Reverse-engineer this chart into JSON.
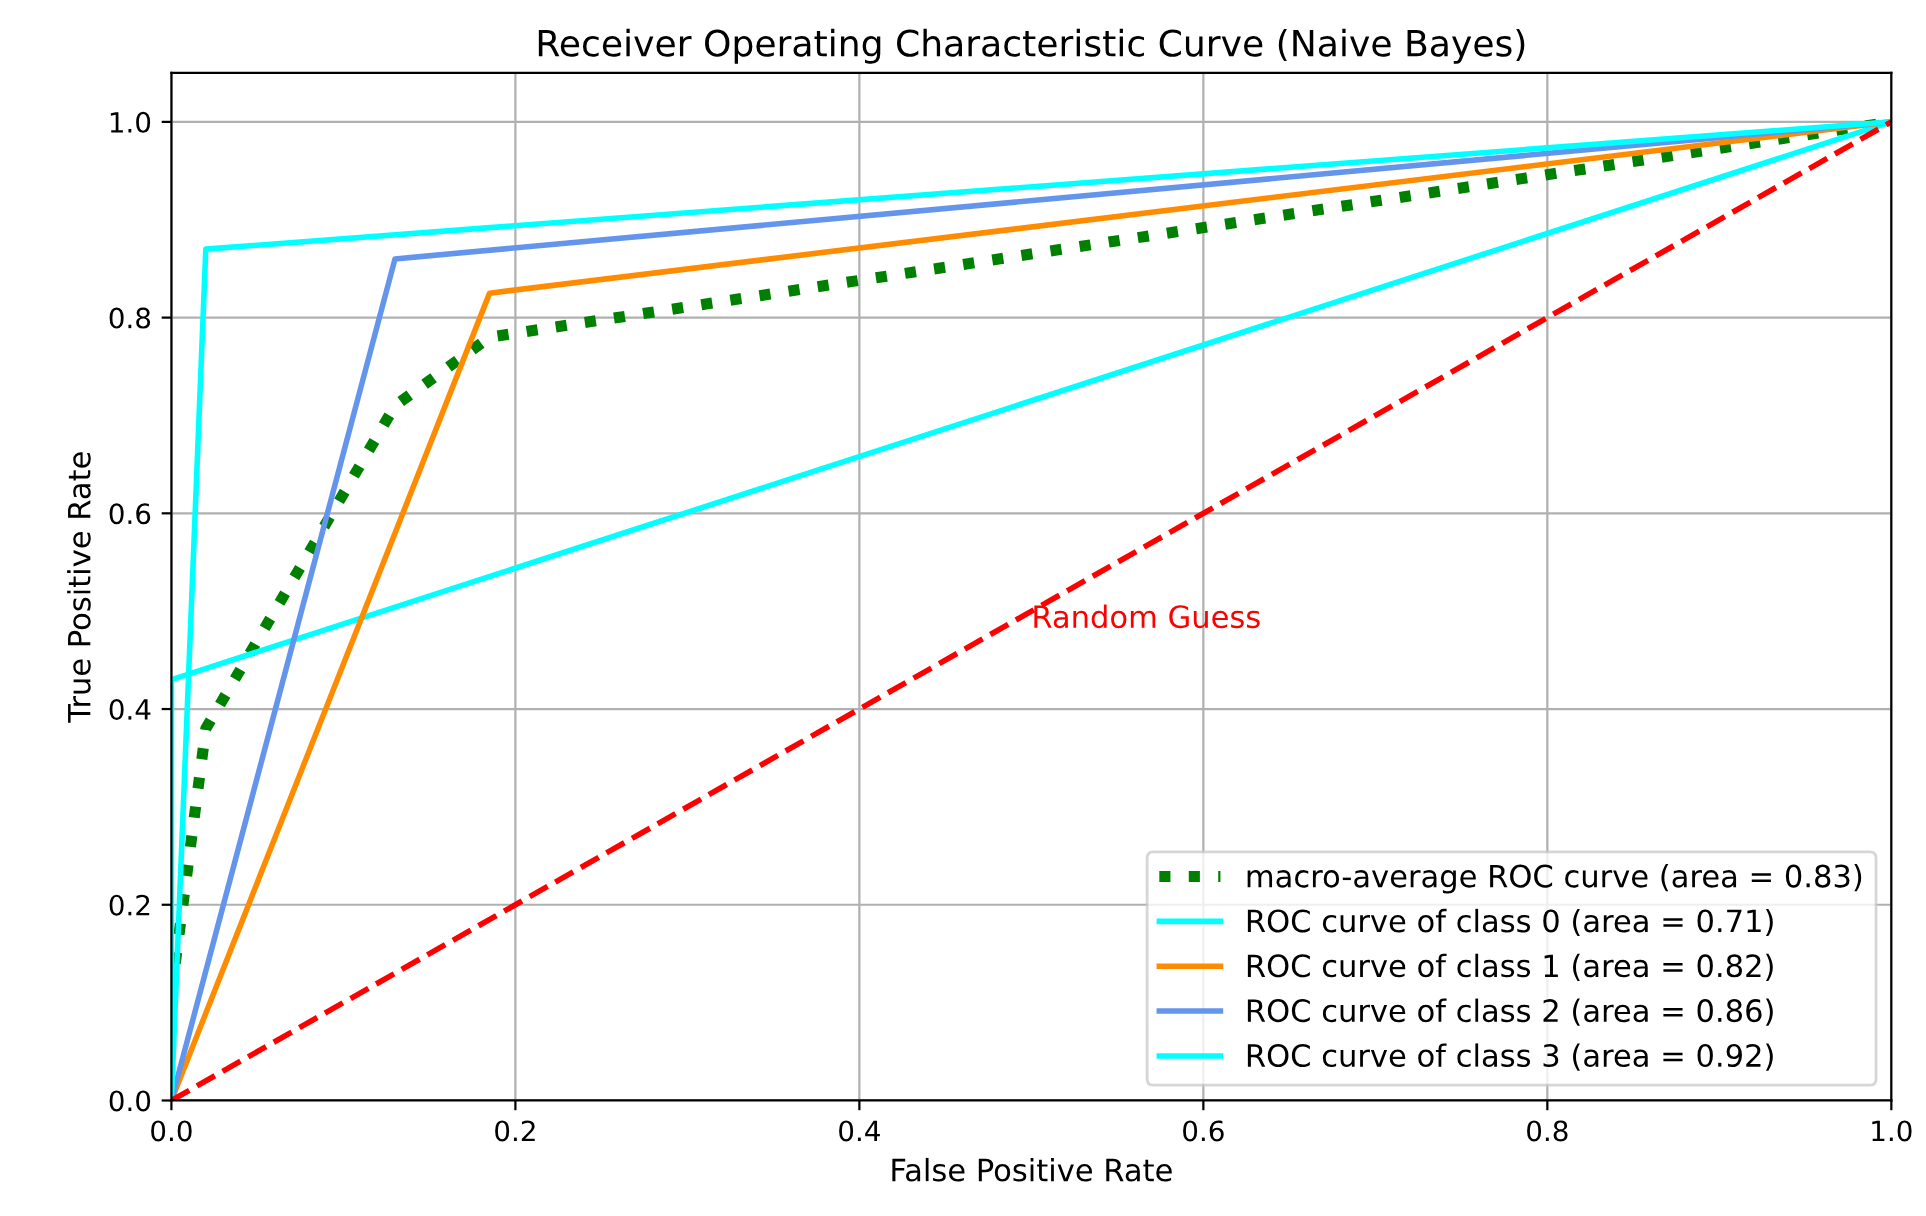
{
  "chart_data": {
    "type": "line",
    "title": "Receiver Operating Characteristic Curve (Naive Bayes)",
    "xlabel": "False Positive Rate",
    "ylabel": "True Positive Rate",
    "xlim": [
      0,
      1
    ],
    "ylim": [
      0,
      1.05
    ],
    "xticks": [
      {
        "value": 0,
        "label": "0.0"
      },
      {
        "value": 0.2,
        "label": "0.2"
      },
      {
        "value": 0.4,
        "label": "0.4"
      },
      {
        "value": 0.6,
        "label": "0.6"
      },
      {
        "value": 0.8,
        "label": "0.8"
      },
      {
        "value": 1,
        "label": "1.0"
      }
    ],
    "yticks": [
      {
        "value": 0,
        "label": "0.0"
      },
      {
        "value": 0.2,
        "label": "0.2"
      },
      {
        "value": 0.4,
        "label": "0.4"
      },
      {
        "value": 0.6,
        "label": "0.6"
      },
      {
        "value": 0.8,
        "label": "0.8"
      },
      {
        "value": 1,
        "label": "1.0"
      }
    ],
    "grid": true,
    "legend": "bottom right",
    "series": [
      {
        "name": "macro-average ROC curve (area = 0.83)",
        "color": "#008000",
        "line_style": "dotted",
        "x": [
          0,
          0.02,
          0.13,
          0.185,
          1
        ],
        "values": [
          0.11,
          0.38,
          0.71,
          0.78,
          1
        ]
      },
      {
        "name": "ROC curve of class 0 (area = 0.71)",
        "color": "#00ffff",
        "line_style": "solid",
        "x": [
          0,
          0,
          1
        ],
        "values": [
          0,
          0.43,
          1
        ]
      },
      {
        "name": "ROC curve of class 1 (area = 0.82)",
        "color": "#ff8c00",
        "line_style": "solid",
        "x": [
          0,
          0.185,
          1
        ],
        "values": [
          0,
          0.825,
          1
        ]
      },
      {
        "name": "ROC curve of class 2 (area = 0.86)",
        "color": "#6495ed",
        "line_style": "solid",
        "x": [
          0,
          0.13,
          1
        ],
        "values": [
          0,
          0.86,
          1
        ]
      },
      {
        "name": "ROC curve of class 3 (area = 0.92)",
        "color": "#00ffff",
        "line_style": "solid",
        "x": [
          0,
          0.02,
          1
        ],
        "values": [
          0,
          0.87,
          1
        ]
      },
      {
        "color": "#ff0000",
        "line_style": "dashed",
        "x": [
          0,
          1
        ],
        "values": [
          0,
          1
        ]
      }
    ],
    "annotations": [
      "Random Guess"
    ]
  }
}
